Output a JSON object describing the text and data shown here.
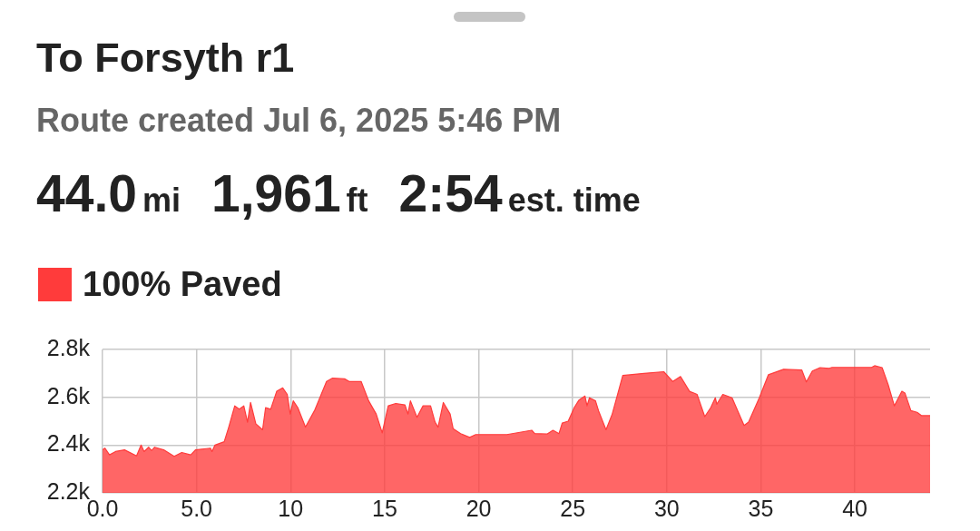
{
  "chart_data": {
    "type": "area",
    "title": "To Forsyth r1",
    "subtitle": "Route created Jul 6, 2025 5:46 PM",
    "annotations": [
      "44.0",
      "mi",
      "1,961",
      "ft",
      "2:54",
      "est. time"
    ],
    "legend": "top left",
    "grid": true,
    "xlim": [
      0,
      44
    ],
    "xticks": [
      {
        "value": 0,
        "label": "0.0"
      },
      {
        "value": 5,
        "label": "5.0"
      },
      10,
      15,
      20,
      25,
      30,
      35,
      40
    ],
    "ylim": [
      2200,
      2800
    ],
    "yticks": [
      {
        "value": 2200,
        "label": "2.2k"
      },
      {
        "value": 2400,
        "label": "2.4k"
      },
      {
        "value": 2600,
        "label": "2.6k"
      },
      {
        "value": 2800,
        "label": "2.8k"
      }
    ],
    "series": [
      {
        "name": "100% Paved",
        "color": "#ff3b3b",
        "x": [
          0,
          0.13,
          0.37,
          0.69,
          1.17,
          1.81,
          2.05,
          2.21,
          2.45,
          2.61,
          2.77,
          3.25,
          3.81,
          4.21,
          4.69,
          4.94,
          5.74,
          5.82,
          5.98,
          6.47,
          6.71,
          7.03,
          7.27,
          7.51,
          7.71,
          7.87,
          8.15,
          8.51,
          8.67,
          8.94,
          9.26,
          9.58,
          9.82,
          9.98,
          10.14,
          10.38,
          10.79,
          11.27,
          11.91,
          12.23,
          12.87,
          13.11,
          13.75,
          14.15,
          14.55,
          14.87,
          15.19,
          15.59,
          16.08,
          16.24,
          16.37,
          16.72,
          17.04,
          17.44,
          17.68,
          17.84,
          18.12,
          18.48,
          18.64,
          19.04,
          19.52,
          19.84,
          21.5,
          22.82,
          22.98,
          23.63,
          23.95,
          24.27,
          24.44,
          24.76,
          25.08,
          25.32,
          25.65,
          25.76,
          25.89,
          26.21,
          26.37,
          26.77,
          27.1,
          27.66,
          28.79,
          29.84,
          30.32,
          30.73,
          31.21,
          31.61,
          32.02,
          32.34,
          32.58,
          32.66,
          32.98,
          33.47,
          34.11,
          34.35,
          34.92,
          35.4,
          36.21,
          37.18,
          37.42,
          37.74,
          38.15,
          38.63,
          38.79,
          40.89,
          41.05,
          41.45,
          41.77,
          42.1,
          42.5,
          42.66,
          42.98,
          43.31,
          43.55,
          44
        ],
        "values": [
          2380,
          2387,
          2359,
          2373,
          2380,
          2355,
          2400,
          2373,
          2391,
          2377,
          2391,
          2380,
          2353,
          2369,
          2359,
          2380,
          2387,
          2373,
          2400,
          2414,
          2475,
          2564,
          2550,
          2564,
          2496,
          2578,
          2489,
          2464,
          2557,
          2550,
          2625,
          2639,
          2612,
          2530,
          2585,
          2557,
          2475,
          2544,
          2666,
          2680,
          2677,
          2666,
          2666,
          2585,
          2530,
          2451,
          2564,
          2574,
          2568,
          2530,
          2585,
          2516,
          2564,
          2564,
          2496,
          2475,
          2578,
          2530,
          2469,
          2448,
          2432,
          2444,
          2444,
          2462,
          2448,
          2446,
          2462,
          2448,
          2492,
          2500,
          2557,
          2587,
          2605,
          2564,
          2598,
          2585,
          2544,
          2464,
          2530,
          2691,
          2700,
          2707,
          2666,
          2687,
          2625,
          2612,
          2519,
          2557,
          2598,
          2571,
          2612,
          2598,
          2482,
          2496,
          2598,
          2694,
          2717,
          2714,
          2664,
          2710,
          2724,
          2721,
          2725,
          2725,
          2732,
          2724,
          2653,
          2564,
          2625,
          2618,
          2544,
          2537,
          2523,
          2523
        ]
      }
    ]
  }
}
